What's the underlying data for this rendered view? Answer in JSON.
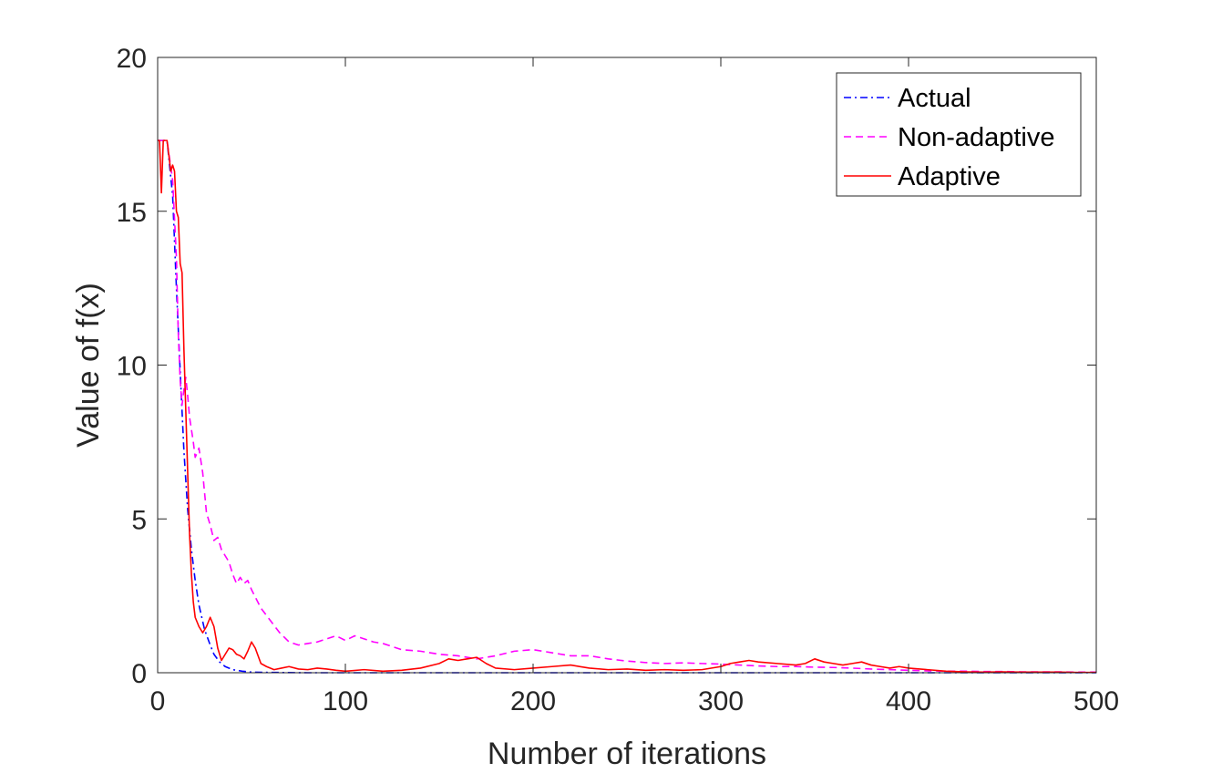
{
  "chart_data": {
    "type": "line",
    "title": "",
    "xlabel": "Number of iterations",
    "ylabel": "Value of f(x)",
    "xlim": [
      0,
      500
    ],
    "ylim": [
      0,
      20
    ],
    "xticks": [
      "0",
      "100",
      "200",
      "300",
      "400",
      "500"
    ],
    "yticks": [
      "0",
      "5",
      "10",
      "15",
      "20"
    ],
    "grid": false,
    "legend_position": "top-right",
    "series": [
      {
        "name": "Actual",
        "color": "#0000ff",
        "style": "dash-dot",
        "x": [
          0,
          5,
          8,
          10,
          12,
          14,
          16,
          18,
          20,
          22,
          25,
          28,
          30,
          33,
          36,
          40,
          45,
          50,
          60,
          80,
          100,
          150,
          200,
          250,
          300,
          350,
          400,
          450,
          500
        ],
        "y": [
          17.3,
          17.3,
          15.5,
          12.5,
          9.8,
          7.2,
          5.3,
          4.0,
          3.0,
          2.2,
          1.4,
          0.9,
          0.6,
          0.35,
          0.2,
          0.1,
          0.05,
          0.02,
          0.01,
          0.0,
          0.0,
          0.0,
          0.0,
          0.0,
          0.0,
          0.0,
          0.0,
          0.0,
          0.0
        ]
      },
      {
        "name": "Non-adaptive",
        "color": "#ff00ff",
        "style": "dashed",
        "x": [
          0,
          5,
          8,
          10,
          11,
          12,
          13,
          14,
          15,
          16,
          17,
          18,
          19,
          20,
          22,
          24,
          26,
          28,
          30,
          32,
          34,
          36,
          38,
          40,
          42,
          44,
          46,
          48,
          50,
          55,
          60,
          65,
          70,
          75,
          80,
          85,
          90,
          95,
          100,
          105,
          110,
          115,
          120,
          125,
          130,
          140,
          150,
          160,
          170,
          180,
          190,
          200,
          210,
          220,
          230,
          240,
          250,
          260,
          270,
          280,
          290,
          300,
          310,
          320,
          330,
          340,
          350,
          360,
          370,
          380,
          390,
          400,
          410,
          420,
          430,
          440,
          450,
          460,
          470,
          480,
          490,
          500
        ],
        "y": [
          17.3,
          17.3,
          16.0,
          13.5,
          11.0,
          9.5,
          8.7,
          9.2,
          9.6,
          9.0,
          8.3,
          7.9,
          7.5,
          7.0,
          7.3,
          6.5,
          5.2,
          4.8,
          4.3,
          4.4,
          4.0,
          3.8,
          3.6,
          3.2,
          2.9,
          3.1,
          2.9,
          3.0,
          2.7,
          2.1,
          1.7,
          1.3,
          1.0,
          0.9,
          0.95,
          1.0,
          1.1,
          1.2,
          1.05,
          1.2,
          1.1,
          1.0,
          0.95,
          0.85,
          0.75,
          0.7,
          0.6,
          0.55,
          0.45,
          0.55,
          0.7,
          0.75,
          0.65,
          0.55,
          0.55,
          0.45,
          0.38,
          0.33,
          0.3,
          0.32,
          0.3,
          0.28,
          0.25,
          0.22,
          0.2,
          0.2,
          0.18,
          0.17,
          0.15,
          0.12,
          0.1,
          0.08,
          0.06,
          0.05,
          0.05,
          0.04,
          0.04,
          0.03,
          0.03,
          0.03,
          0.02,
          0.02
        ]
      },
      {
        "name": "Adaptive",
        "color": "#ff0000",
        "style": "solid",
        "x": [
          0,
          1,
          2,
          3,
          4,
          5,
          6,
          7,
          8,
          9,
          10,
          11,
          12,
          13,
          14,
          15,
          16,
          17,
          18,
          19,
          20,
          22,
          24,
          26,
          28,
          30,
          32,
          34,
          36,
          38,
          40,
          42,
          44,
          46,
          48,
          50,
          52,
          55,
          58,
          62,
          66,
          70,
          75,
          80,
          85,
          90,
          95,
          100,
          110,
          120,
          130,
          140,
          150,
          155,
          160,
          165,
          170,
          175,
          180,
          190,
          200,
          210,
          220,
          230,
          240,
          250,
          260,
          270,
          280,
          290,
          300,
          305,
          310,
          315,
          320,
          330,
          340,
          345,
          350,
          355,
          360,
          365,
          370,
          375,
          380,
          385,
          390,
          395,
          400,
          410,
          420,
          430,
          440,
          450,
          460,
          470,
          480,
          490,
          500
        ],
        "y": [
          17.3,
          17.3,
          15.6,
          17.3,
          17.3,
          17.3,
          16.8,
          16.3,
          16.5,
          16.3,
          15.0,
          14.8,
          13.3,
          13.0,
          10.5,
          8.5,
          6.5,
          4.5,
          3.2,
          2.3,
          1.8,
          1.5,
          1.3,
          1.5,
          1.8,
          1.5,
          0.8,
          0.4,
          0.6,
          0.8,
          0.75,
          0.6,
          0.55,
          0.45,
          0.7,
          1.0,
          0.8,
          0.3,
          0.2,
          0.1,
          0.15,
          0.2,
          0.12,
          0.1,
          0.15,
          0.12,
          0.08,
          0.05,
          0.1,
          0.05,
          0.08,
          0.15,
          0.3,
          0.45,
          0.4,
          0.45,
          0.5,
          0.3,
          0.15,
          0.1,
          0.15,
          0.2,
          0.25,
          0.15,
          0.1,
          0.12,
          0.08,
          0.1,
          0.08,
          0.1,
          0.2,
          0.3,
          0.35,
          0.4,
          0.35,
          0.3,
          0.25,
          0.3,
          0.45,
          0.35,
          0.3,
          0.25,
          0.3,
          0.35,
          0.25,
          0.2,
          0.15,
          0.2,
          0.15,
          0.1,
          0.05,
          0.03,
          0.02,
          0.03,
          0.02,
          0.02,
          0.02,
          0.01,
          0.01
        ]
      }
    ]
  }
}
